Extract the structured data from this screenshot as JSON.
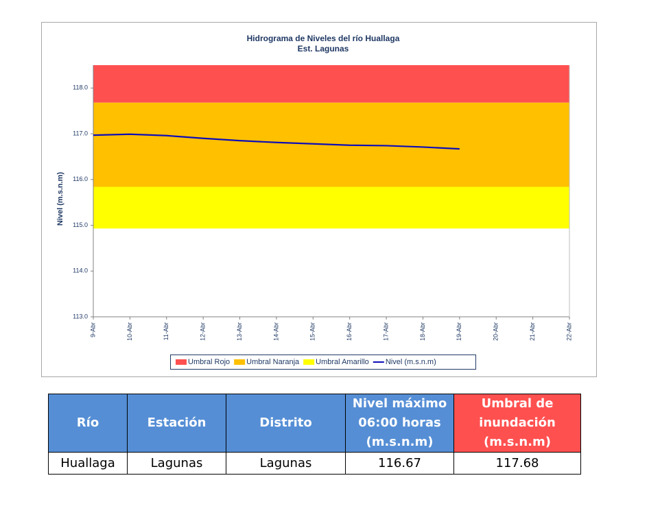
{
  "chart_data": {
    "type": "line",
    "title": "Hidrograma de Niveles del río Huallaga",
    "subtitle": "Est. Lagunas",
    "y_label": "Nivel (m.s.n.m)",
    "categories": [
      "9-Abr",
      "10-Abr",
      "11-Abr",
      "12-Abr",
      "13-Abr",
      "14-Abr",
      "15-Abr",
      "16-Abr",
      "17-Abr",
      "18-Abr",
      "19-Abr",
      "20-Abr",
      "21-Abr",
      "22-Abr"
    ],
    "ylim": [
      113,
      118.5
    ],
    "yticks": [
      {
        "value": 113,
        "label": "113.0"
      },
      {
        "value": 114,
        "label": "114.0"
      },
      {
        "value": 115,
        "label": "115.0"
      },
      {
        "value": 116,
        "label": "116.0"
      },
      {
        "value": 117,
        "label": "117.0"
      },
      {
        "value": 118,
        "label": "118.0"
      }
    ],
    "bands": [
      {
        "name": "Umbral Rojo",
        "color": "#FF5050",
        "values": [
          117.68,
          118.5
        ]
      },
      {
        "name": "Umbral Naranja",
        "color": "#FFC000",
        "values": [
          115.84,
          117.68
        ]
      },
      {
        "name": "Umbral Amarillo",
        "color": "#FFFF00",
        "values": [
          114.93,
          115.84
        ]
      }
    ],
    "series": [
      {
        "name": "Nivel (m.s.n.m)",
        "color": "#0D0DB8",
        "values": [
          116.97,
          116.99,
          116.96,
          116.9,
          116.85,
          116.81,
          116.78,
          116.75,
          116.74,
          116.71,
          116.67,
          null,
          null,
          null
        ]
      }
    ]
  },
  "table": {
    "header": [
      "Río",
      "Estación",
      "Distrito",
      "Nivel máximo 06:00 horas (m.s.n.m)",
      "Umbral de inundación (m.s.n.m)"
    ],
    "rows": [
      [
        "Huallaga",
        "Lagunas",
        "Lagunas",
        "116.67",
        "117.68"
      ]
    ]
  }
}
